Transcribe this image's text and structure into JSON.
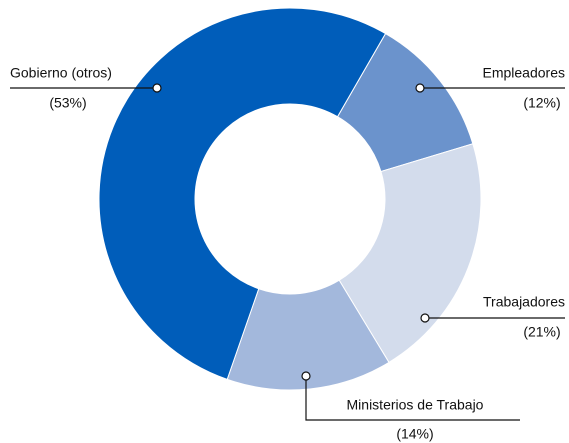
{
  "chart_data": {
    "type": "donut",
    "categories": [
      "Empleadores",
      "Trabajadores",
      "Ministerios de Trabajo",
      "Gobierno (otros)"
    ],
    "values": [
      12,
      21,
      14,
      53
    ],
    "value_labels": [
      "(12%)",
      "(21%)",
      "(14%)",
      "(53%)"
    ],
    "colors": [
      "#6b93cc",
      "#d3dcec",
      "#a3b8dc",
      "#005dba"
    ]
  }
}
